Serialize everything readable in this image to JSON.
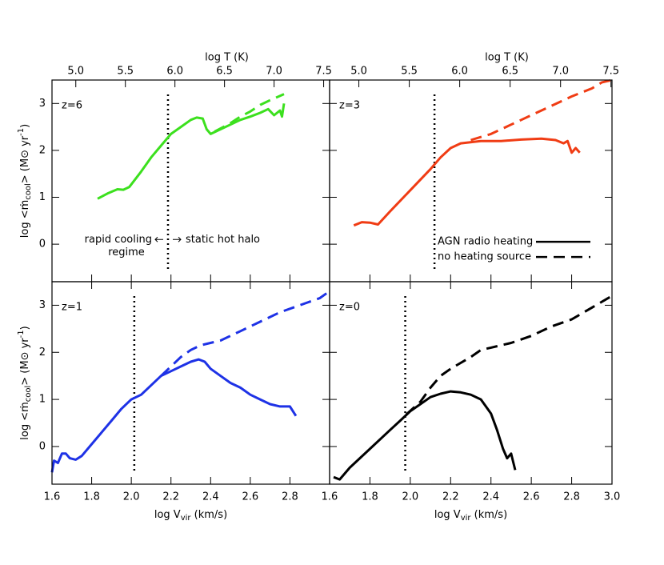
{
  "chart_data": [
    {
      "type": "line",
      "panel_label": "z=6",
      "xlim": [
        1.6,
        3.0
      ],
      "xticks": [
        1.6,
        1.8,
        {
          "value": 2,
          "label": "2.0"
        },
        2.2,
        2.4,
        2.6,
        2.8
      ],
      "show_xtick_labels": false,
      "x2label": "log T (K)",
      "x2lim": [
        4.76,
        7.56
      ],
      "x2ticks": [
        {
          "value": 5,
          "label": "5.0"
        },
        5.5,
        {
          "value": 6,
          "label": "6.0"
        },
        6.5,
        {
          "value": 7,
          "label": "7.0"
        },
        7.5
      ],
      "ylim": [
        -0.8,
        3.5
      ],
      "yticks": [
        0,
        1,
        2,
        3
      ],
      "show_ytick_labels": true,
      "ylabel": {
        "main": "log <ṁ",
        "sub": "cool",
        "after": "> (M⊙ yr",
        "sup": "-1",
        "end": ")"
      },
      "vline": 2.185,
      "annotations": [
        "rapid cooling",
        "regime",
        "static hot halo"
      ],
      "series": [
        {
          "style": "solid",
          "color": "#3ce01e",
          "x": [
            1.83,
            1.88,
            1.93,
            1.96,
            1.99,
            2.05,
            2.1,
            2.15,
            2.2,
            2.25,
            2.3,
            2.33,
            2.36,
            2.38,
            2.4,
            2.45,
            2.5,
            2.55,
            2.6,
            2.65,
            2.69,
            2.72,
            2.75,
            2.76,
            2.77
          ],
          "values": [
            0.97,
            1.08,
            1.17,
            1.16,
            1.22,
            1.55,
            1.85,
            2.1,
            2.35,
            2.5,
            2.65,
            2.7,
            2.68,
            2.45,
            2.35,
            2.45,
            2.55,
            2.65,
            2.72,
            2.8,
            2.88,
            2.75,
            2.85,
            2.72,
            3.0
          ]
        },
        {
          "style": "dashed",
          "color": "#3ce01e",
          "x": [
            2.42,
            2.5,
            2.55,
            2.6,
            2.65,
            2.7,
            2.77
          ],
          "values": [
            2.4,
            2.58,
            2.72,
            2.83,
            2.97,
            3.07,
            3.2
          ]
        }
      ]
    },
    {
      "type": "line",
      "panel_label": "z=3",
      "xlim": [
        1.6,
        3.0
      ],
      "xticks": [
        1.8,
        {
          "value": 2,
          "label": "2.0"
        },
        2.2,
        2.4,
        2.6,
        2.8
      ],
      "show_xtick_labels": false,
      "x2label": "log T (K)",
      "x2lim": [
        4.71,
        7.51
      ],
      "x2ticks": [
        {
          "value": 5,
          "label": "5.0"
        },
        5.5,
        {
          "value": 6,
          "label": "6.0"
        },
        6.5,
        {
          "value": 7,
          "label": "7.0"
        },
        7.5
      ],
      "ylim": [
        -0.8,
        3.5
      ],
      "yticks": [
        0,
        1,
        2,
        3
      ],
      "show_ytick_labels": false,
      "vline": 2.12,
      "legend": [
        {
          "label": "AGN radio heating",
          "style": "solid"
        },
        {
          "label": "no heating source",
          "style": "dashed"
        }
      ],
      "series": [
        {
          "style": "solid",
          "color": "#f03c14",
          "x": [
            1.72,
            1.76,
            1.8,
            1.84,
            1.9,
            2.0,
            2.1,
            2.15,
            2.2,
            2.25,
            2.35,
            2.45,
            2.55,
            2.65,
            2.72,
            2.76,
            2.78,
            2.8,
            2.82,
            2.84
          ],
          "values": [
            0.4,
            0.47,
            0.46,
            0.42,
            0.7,
            1.15,
            1.6,
            1.85,
            2.05,
            2.15,
            2.2,
            2.2,
            2.23,
            2.25,
            2.22,
            2.15,
            2.2,
            1.95,
            2.05,
            1.95
          ]
        },
        {
          "style": "dashed",
          "color": "#f03c14",
          "x": [
            2.3,
            2.4,
            2.5,
            2.6,
            2.7,
            2.8,
            2.9,
            2.95,
            3.0
          ],
          "values": [
            2.22,
            2.35,
            2.55,
            2.75,
            2.95,
            3.15,
            3.32,
            3.45,
            3.5
          ]
        }
      ]
    },
    {
      "type": "line",
      "panel_label": "z=1",
      "xlim": [
        1.6,
        3.0
      ],
      "xticks": [
        1.6,
        1.8,
        {
          "value": 2,
          "label": "2.0"
        },
        2.2,
        2.4,
        2.6,
        2.8
      ],
      "show_xtick_labels": true,
      "xlabel": {
        "main": "log V",
        "sub": "vir",
        "after": " (km/s)"
      },
      "ylim": [
        -0.8,
        3.5
      ],
      "yticks": [
        0,
        1,
        2,
        3
      ],
      "show_ytick_labels": true,
      "ylabel": {
        "main": "log <ṁ",
        "sub": "cool",
        "after": "> (M⊙ yr",
        "sup": "-1",
        "end": ")"
      },
      "vline": 2.015,
      "series": [
        {
          "style": "solid",
          "color": "#1e32e6",
          "x": [
            1.6,
            1.61,
            1.63,
            1.65,
            1.67,
            1.69,
            1.72,
            1.75,
            1.8,
            1.85,
            1.9,
            1.95,
            2.0,
            2.05,
            2.1,
            2.15,
            2.2,
            2.25,
            2.3,
            2.34,
            2.37,
            2.4,
            2.45,
            2.5,
            2.55,
            2.6,
            2.65,
            2.7,
            2.75,
            2.8,
            2.83
          ],
          "values": [
            -0.55,
            -0.3,
            -0.35,
            -0.15,
            -0.15,
            -0.25,
            -0.28,
            -0.2,
            0.05,
            0.3,
            0.55,
            0.8,
            1.0,
            1.1,
            1.3,
            1.5,
            1.6,
            1.7,
            1.8,
            1.85,
            1.8,
            1.65,
            1.5,
            1.35,
            1.25,
            1.1,
            1.0,
            0.9,
            0.85,
            0.85,
            0.65
          ]
        },
        {
          "style": "dashed",
          "color": "#1e32e6",
          "x": [
            2.15,
            2.2,
            2.25,
            2.3,
            2.35,
            2.45,
            2.55,
            2.65,
            2.75,
            2.85,
            2.95,
            3.0
          ],
          "values": [
            1.5,
            1.7,
            1.9,
            2.05,
            2.15,
            2.25,
            2.45,
            2.65,
            2.85,
            3.0,
            3.15,
            3.3
          ]
        }
      ]
    },
    {
      "type": "line",
      "panel_label": "z=0",
      "xlim": [
        1.6,
        3.0
      ],
      "xticks": [
        1.6,
        1.8,
        {
          "value": 2,
          "label": "2.0"
        },
        2.2,
        2.4,
        2.6,
        2.8,
        {
          "value": 3,
          "label": "3.0"
        }
      ],
      "show_xtick_labels": true,
      "xlabel": {
        "main": "log V",
        "sub": "vir",
        "after": " (km/s)"
      },
      "ylim": [
        -0.8,
        3.5
      ],
      "yticks": [
        0,
        1,
        2,
        3
      ],
      "show_ytick_labels": false,
      "vline": 1.975,
      "series": [
        {
          "style": "solid",
          "color": "#000000",
          "x": [
            1.62,
            1.65,
            1.7,
            1.8,
            1.9,
            1.95,
            2.0,
            2.05,
            2.1,
            2.15,
            2.2,
            2.25,
            2.3,
            2.35,
            2.4,
            2.43,
            2.46,
            2.48,
            2.5,
            2.52
          ],
          "values": [
            -0.65,
            -0.7,
            -0.45,
            -0.05,
            0.35,
            0.55,
            0.75,
            0.9,
            1.05,
            1.12,
            1.17,
            1.15,
            1.1,
            1.0,
            0.7,
            0.35,
            -0.05,
            -0.25,
            -0.15,
            -0.5
          ]
        },
        {
          "style": "dashed",
          "color": "#000000",
          "x": [
            1.98,
            2.05,
            2.1,
            2.15,
            2.2,
            2.3,
            2.35,
            2.4,
            2.5,
            2.6,
            2.7,
            2.8,
            2.9,
            3.0
          ],
          "values": [
            0.68,
            0.95,
            1.25,
            1.5,
            1.65,
            1.9,
            2.05,
            2.1,
            2.2,
            2.35,
            2.55,
            2.7,
            2.95,
            3.2
          ]
        }
      ]
    }
  ]
}
